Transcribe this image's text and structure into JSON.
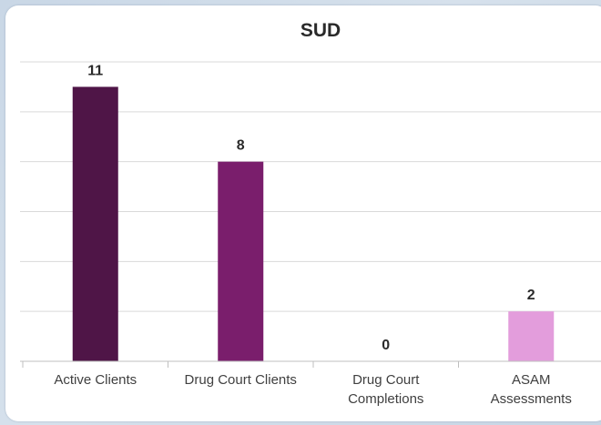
{
  "chart_data": {
    "type": "bar",
    "title": "SUD",
    "categories": [
      [
        "Active Clients"
      ],
      [
        "Drug Court Clients"
      ],
      [
        "Drug Court",
        "Completions"
      ],
      [
        "ASAM",
        "Assessments"
      ]
    ],
    "values": [
      11,
      8,
      0,
      2
    ],
    "data_labels": [
      "11",
      "8",
      "0",
      "2"
    ],
    "bar_colors": [
      "#4f1547",
      "#7a1e6c",
      "#7a1e6c",
      "#e39ddc"
    ],
    "ylim": [
      0,
      12
    ],
    "y_gridline_step": 2,
    "grid": true,
    "legend": "none",
    "xlabel": "",
    "ylabel": ""
  }
}
